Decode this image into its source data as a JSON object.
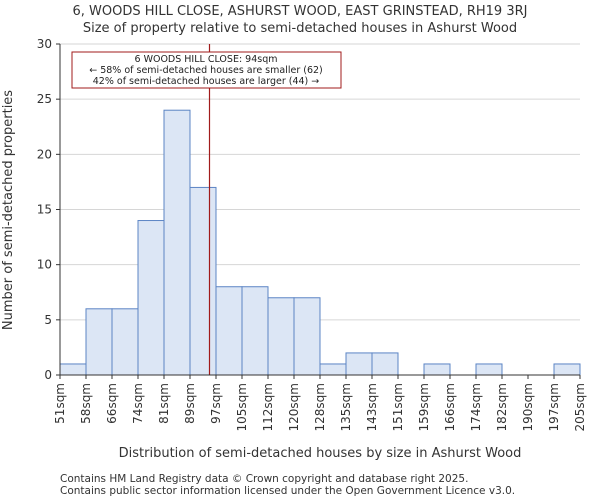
{
  "chart_data": {
    "type": "histogram",
    "title": "6, WOODS HILL CLOSE, ASHURST WOOD, EAST GRINSTEAD, RH19 3RJ",
    "subtitle": "Size of property relative to semi-detached houses in Ashurst Wood",
    "xlabel": "Distribution of semi-detached houses by size in Ashurst Wood",
    "ylabel": "Number of semi-detached properties",
    "categories": [
      "51sqm",
      "58sqm",
      "66sqm",
      "74sqm",
      "81sqm",
      "89sqm",
      "97sqm",
      "105sqm",
      "112sqm",
      "120sqm",
      "128sqm",
      "135sqm",
      "143sqm",
      "151sqm",
      "159sqm",
      "166sqm",
      "174sqm",
      "182sqm",
      "190sqm",
      "197sqm",
      "205sqm"
    ],
    "values": [
      1,
      6,
      6,
      14,
      24,
      17,
      8,
      8,
      7,
      7,
      1,
      2,
      2,
      0,
      1,
      0,
      1,
      0,
      0,
      1
    ],
    "ylim": [
      0,
      30
    ],
    "yticks": [
      0,
      5,
      10,
      15,
      20,
      25,
      30
    ],
    "grid": true,
    "bar_fill": "#dce6f5",
    "bar_edge": "#5b84c4",
    "marker": {
      "value_sqm": 94,
      "bin_position": 5.75,
      "color": "#a11b1b"
    },
    "annotation": {
      "line1": "6 WOODS HILL CLOSE: 94sqm",
      "line2": "← 58% of semi-detached houses are smaller (62)",
      "line3": "42% of semi-detached houses are larger (44) →"
    }
  },
  "footer": {
    "line1": "Contains HM Land Registry data © Crown copyright and database right 2025.",
    "line2": "Contains public sector information licensed under the Open Government Licence v3.0."
  }
}
